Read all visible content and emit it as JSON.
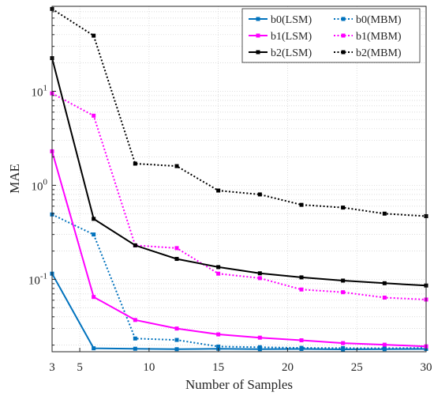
{
  "chart_data": {
    "type": "line",
    "xlabel": "Number of Samples",
    "ylabel": "MAE",
    "xlim": [
      3,
      30
    ],
    "ylim": [
      0.017,
      80
    ],
    "yscale": "log",
    "grid": true,
    "legend_position": "top-right",
    "legend_columns": 2,
    "x_ticks": [
      3,
      5,
      10,
      15,
      20,
      25,
      30
    ],
    "y_ticks": [
      {
        "value": 0.1,
        "base": "10",
        "exp": "-1"
      },
      {
        "value": 1,
        "base": "10",
        "exp": "0"
      },
      {
        "value": 10,
        "base": "10",
        "exp": "1"
      }
    ],
    "x": [
      3,
      6,
      9,
      12,
      15,
      18,
      21,
      24,
      27,
      30
    ],
    "series": [
      {
        "name": "b0(LSM)",
        "color": "#0072BD",
        "dash": "solid",
        "values": [
          0.115,
          0.0185,
          0.0183,
          0.0181,
          0.0183,
          0.0181,
          0.0182,
          0.018,
          0.0181,
          0.0182
        ]
      },
      {
        "name": "b0(MBM)",
        "color": "#0072BD",
        "dash": "dotted",
        "values": [
          0.49,
          0.3,
          0.0235,
          0.0227,
          0.0193,
          0.019,
          0.0187,
          0.0186,
          0.0185,
          0.0187
        ]
      },
      {
        "name": "b1(LSM)",
        "color": "#FF00FF",
        "dash": "solid",
        "values": [
          2.3,
          0.065,
          0.037,
          0.03,
          0.026,
          0.024,
          0.0225,
          0.021,
          0.0202,
          0.0194
        ]
      },
      {
        "name": "b1(MBM)",
        "color": "#FF00FF",
        "dash": "dotted",
        "values": [
          9.5,
          5.5,
          0.23,
          0.215,
          0.115,
          0.103,
          0.078,
          0.073,
          0.064,
          0.061
        ]
      },
      {
        "name": "b2(LSM)",
        "color": "#000000",
        "dash": "solid",
        "values": [
          22.5,
          0.44,
          0.23,
          0.165,
          0.135,
          0.116,
          0.105,
          0.097,
          0.091,
          0.086
        ]
      },
      {
        "name": "b2(MBM)",
        "color": "#000000",
        "dash": "dotted",
        "values": [
          75,
          39,
          1.7,
          1.6,
          0.88,
          0.8,
          0.62,
          0.58,
          0.5,
          0.47
        ]
      }
    ]
  }
}
